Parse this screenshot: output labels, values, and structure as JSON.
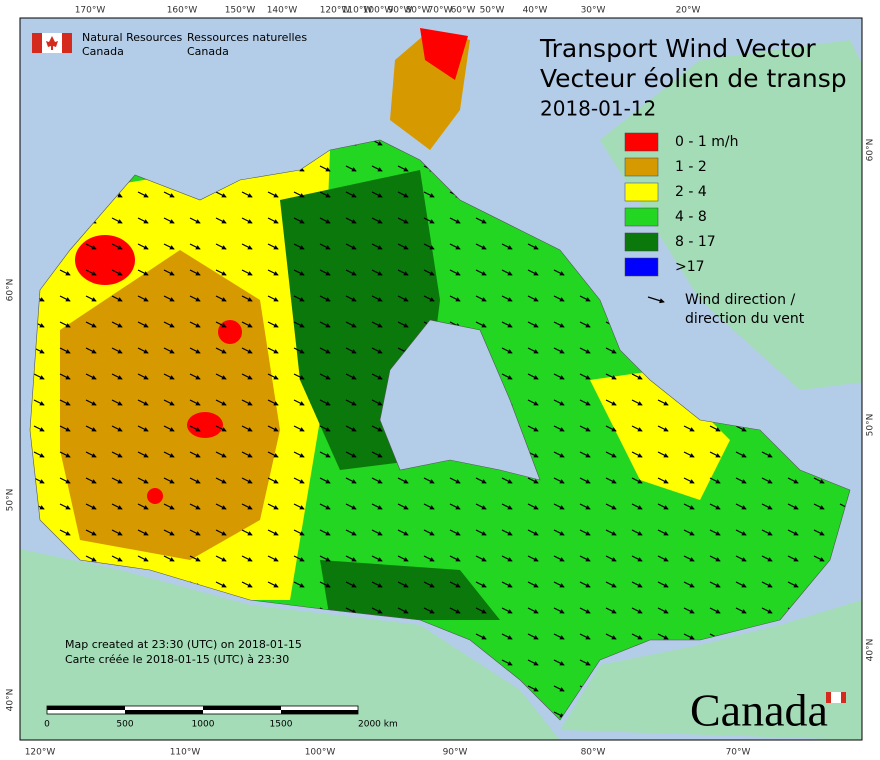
{
  "header": {
    "org_en": [
      "Natural Resources",
      "Canada"
    ],
    "org_fr": [
      "Ressources naturelles",
      "Canada"
    ]
  },
  "title": [
    "Transport Wind Vector",
    "Vecteur éolien de transp"
  ],
  "date": "2018-01-12",
  "legend": {
    "items": [
      {
        "label": "0 - 1 m/h",
        "color": "#ff0000"
      },
      {
        "label": "1 - 2",
        "color": "#d69a00"
      },
      {
        "label": "2 - 4",
        "color": "#ffff00"
      },
      {
        "label": "4 - 8",
        "color": "#22d622"
      },
      {
        "label": "8 - 17",
        "color": "#0a780a"
      },
      {
        "label": ">17",
        "color": "#0000ff"
      }
    ],
    "wind": [
      "Wind direction /",
      "direction du vent"
    ]
  },
  "notes": [
    "Map created at 23:30 (UTC) on 2018-01-15",
    "Carte créée le 2018-01-15 (UTC) à 23:30"
  ],
  "scale_bar": [
    "0",
    "500",
    "1000",
    "1500",
    "2000 km"
  ],
  "graticule": {
    "top": [
      "170°W",
      "160°W",
      "150°W",
      "140°W",
      "120°W",
      "110°W",
      "100°W",
      "90°W",
      "80°W",
      "70°W",
      "60°W",
      "50°W",
      "40°W",
      "30°W",
      "20°W"
    ],
    "bottom": [
      "120°W",
      "110°W",
      "100°W",
      "90°W",
      "80°W",
      "70°W"
    ],
    "left": [
      "60°N",
      "50°N",
      "40°N"
    ],
    "right": [
      "60°N",
      "50°N",
      "40°N"
    ]
  },
  "wordmark": "Canada"
}
